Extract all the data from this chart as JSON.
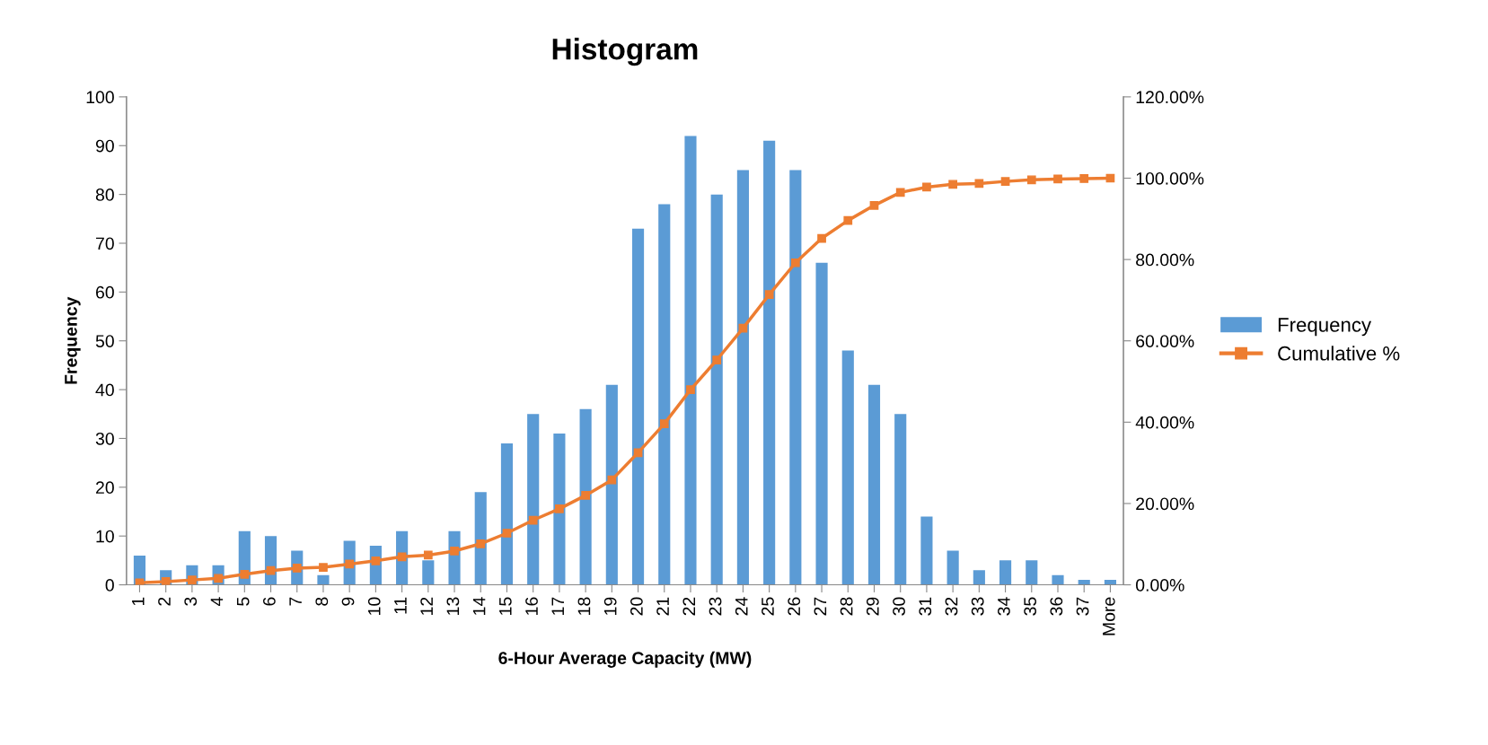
{
  "chart_data": {
    "type": "bar",
    "title": "Histogram",
    "xlabel": "6-Hour Average Capacity (MW)",
    "ylabel": "Frequency",
    "categories": [
      "1",
      "2",
      "3",
      "4",
      "5",
      "6",
      "7",
      "8",
      "9",
      "10",
      "11",
      "12",
      "13",
      "14",
      "15",
      "16",
      "17",
      "18",
      "19",
      "20",
      "21",
      "22",
      "23",
      "24",
      "25",
      "26",
      "27",
      "28",
      "29",
      "30",
      "31",
      "32",
      "33",
      "34",
      "35",
      "36",
      "37",
      "More"
    ],
    "series": [
      {
        "name": "Frequency",
        "color": "#5b9bd5",
        "values": [
          6,
          3,
          4,
          4,
          11,
          10,
          7,
          2,
          9,
          8,
          11,
          5,
          11,
          19,
          29,
          35,
          31,
          36,
          41,
          73,
          78,
          92,
          80,
          85,
          91,
          85,
          66,
          48,
          41,
          35,
          14,
          7,
          3,
          5,
          5,
          2,
          1,
          1
        ]
      },
      {
        "name": "Cumulative %",
        "type": "line",
        "axis": "y2",
        "marker": "square",
        "color": "#ed7d31",
        "values": [
          0.5,
          0.8,
          1.2,
          1.6,
          2.6,
          3.5,
          4.1,
          4.3,
          5.1,
          5.9,
          6.9,
          7.3,
          8.3,
          10.1,
          12.7,
          15.9,
          18.7,
          22.0,
          25.8,
          32.5,
          39.6,
          48.0,
          55.3,
          63.1,
          71.4,
          79.2,
          85.2,
          89.6,
          93.3,
          96.5,
          97.8,
          98.5,
          98.7,
          99.2,
          99.6,
          99.8,
          99.9,
          100.0
        ]
      }
    ],
    "ylim": [
      0,
      100
    ],
    "yticks": [
      0,
      10,
      20,
      30,
      40,
      50,
      60,
      70,
      80,
      90,
      100
    ],
    "y2lim": [
      0,
      120
    ],
    "y2ticks": [
      {
        "value": 0,
        "label": "0.00%"
      },
      {
        "value": 20,
        "label": "20.00%"
      },
      {
        "value": 40,
        "label": "40.00%"
      },
      {
        "value": 60,
        "label": "60.00%"
      },
      {
        "value": 80,
        "label": "80.00%"
      },
      {
        "value": 100,
        "label": "100.00%"
      },
      {
        "value": 120,
        "label": "120.00%"
      }
    ],
    "grid": false,
    "legend": "right"
  }
}
